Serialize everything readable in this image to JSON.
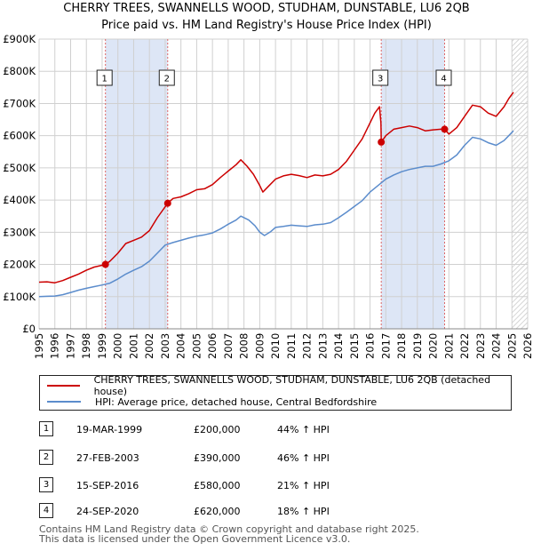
{
  "chart_data": {
    "type": "line",
    "title": "CHERRY TREES, SWANNELLS WOOD, STUDHAM, DUNSTABLE, LU6 2QB",
    "subtitle": "Price paid vs. HM Land Registry's House Price Index (HPI)",
    "xlabel": "",
    "ylabel": "",
    "xlim": [
      1995,
      2026
    ],
    "ylim": [
      0,
      900000
    ],
    "x_ticks": [
      "1995",
      "1996",
      "1997",
      "1998",
      "1999",
      "2000",
      "2001",
      "2002",
      "2003",
      "2004",
      "2005",
      "2006",
      "2007",
      "2008",
      "2009",
      "2010",
      "2011",
      "2012",
      "2013",
      "2014",
      "2015",
      "2016",
      "2017",
      "2018",
      "2019",
      "2020",
      "2021",
      "2022",
      "2023",
      "2024",
      "2025",
      "2026"
    ],
    "y_ticks": [
      {
        "value": 0,
        "label": "£0"
      },
      {
        "value": 100000,
        "label": "£100K"
      },
      {
        "value": 200000,
        "label": "£200K"
      },
      {
        "value": 300000,
        "label": "£300K"
      },
      {
        "value": 400000,
        "label": "£400K"
      },
      {
        "value": 500000,
        "label": "£500K"
      },
      {
        "value": 600000,
        "label": "£600K"
      },
      {
        "value": 700000,
        "label": "£700K"
      },
      {
        "value": 800000,
        "label": "£800K"
      },
      {
        "value": 900000,
        "label": "£900K"
      }
    ],
    "shaded_ranges": [
      [
        1999.21,
        2003.16
      ],
      [
        2016.71,
        2020.73
      ]
    ],
    "forecast_start": 2025.0,
    "series": [
      {
        "name": "CHERRY TREES, SWANNELLS WOOD, STUDHAM, DUNSTABLE, LU6 2QB (detached house)",
        "color": "#cc0000",
        "points": [
          [
            1995,
            145000
          ],
          [
            1995.5,
            146000
          ],
          [
            1996,
            143000
          ],
          [
            1996.5,
            150000
          ],
          [
            1997,
            160000
          ],
          [
            1997.5,
            170000
          ],
          [
            1998,
            182000
          ],
          [
            1998.5,
            192000
          ],
          [
            1999.21,
            200000
          ],
          [
            1999.5,
            210000
          ],
          [
            2000,
            235000
          ],
          [
            2000.5,
            265000
          ],
          [
            2001,
            275000
          ],
          [
            2001.5,
            285000
          ],
          [
            2002,
            305000
          ],
          [
            2002.5,
            345000
          ],
          [
            2003.16,
            390000
          ],
          [
            2003.5,
            405000
          ],
          [
            2004,
            410000
          ],
          [
            2004.5,
            420000
          ],
          [
            2005,
            432000
          ],
          [
            2005.5,
            435000
          ],
          [
            2006,
            448000
          ],
          [
            2006.5,
            470000
          ],
          [
            2007,
            490000
          ],
          [
            2007.5,
            510000
          ],
          [
            2007.8,
            525000
          ],
          [
            2008.2,
            505000
          ],
          [
            2008.6,
            480000
          ],
          [
            2009,
            445000
          ],
          [
            2009.2,
            425000
          ],
          [
            2009.6,
            445000
          ],
          [
            2010,
            465000
          ],
          [
            2010.5,
            475000
          ],
          [
            2011,
            480000
          ],
          [
            2011.5,
            476000
          ],
          [
            2012,
            470000
          ],
          [
            2012.5,
            478000
          ],
          [
            2013,
            475000
          ],
          [
            2013.5,
            480000
          ],
          [
            2014,
            495000
          ],
          [
            2014.5,
            520000
          ],
          [
            2015,
            555000
          ],
          [
            2015.5,
            590000
          ],
          [
            2016,
            640000
          ],
          [
            2016.3,
            670000
          ],
          [
            2016.6,
            690000
          ],
          [
            2016.69,
            640000
          ],
          [
            2016.71,
            580000
          ],
          [
            2017,
            600000
          ],
          [
            2017.5,
            620000
          ],
          [
            2018,
            625000
          ],
          [
            2018.5,
            630000
          ],
          [
            2019,
            625000
          ],
          [
            2019.5,
            615000
          ],
          [
            2020,
            618000
          ],
          [
            2020.5,
            620000
          ],
          [
            2020.73,
            620000
          ],
          [
            2021,
            605000
          ],
          [
            2021.5,
            625000
          ],
          [
            2022,
            660000
          ],
          [
            2022.5,
            695000
          ],
          [
            2023,
            690000
          ],
          [
            2023.5,
            670000
          ],
          [
            2024,
            660000
          ],
          [
            2024.5,
            690000
          ],
          [
            2024.8,
            715000
          ],
          [
            2025.1,
            735000
          ]
        ]
      },
      {
        "name": "HPI: Average price, detached house, Central Bedfordshire",
        "color": "#5b8ccc",
        "points": [
          [
            1995,
            100000
          ],
          [
            1995.5,
            101000
          ],
          [
            1996,
            102000
          ],
          [
            1996.5,
            106000
          ],
          [
            1997,
            113000
          ],
          [
            1997.5,
            120000
          ],
          [
            1998,
            126000
          ],
          [
            1998.5,
            131000
          ],
          [
            1999,
            136000
          ],
          [
            1999.5,
            142000
          ],
          [
            2000,
            155000
          ],
          [
            2000.5,
            170000
          ],
          [
            2001,
            182000
          ],
          [
            2001.5,
            193000
          ],
          [
            2002,
            210000
          ],
          [
            2002.5,
            235000
          ],
          [
            2003,
            260000
          ],
          [
            2003.5,
            268000
          ],
          [
            2004,
            275000
          ],
          [
            2004.5,
            282000
          ],
          [
            2005,
            288000
          ],
          [
            2005.5,
            292000
          ],
          [
            2006,
            298000
          ],
          [
            2006.5,
            310000
          ],
          [
            2007,
            325000
          ],
          [
            2007.5,
            338000
          ],
          [
            2007.8,
            350000
          ],
          [
            2008.3,
            338000
          ],
          [
            2008.7,
            320000
          ],
          [
            2009,
            300000
          ],
          [
            2009.3,
            290000
          ],
          [
            2009.7,
            302000
          ],
          [
            2010,
            315000
          ],
          [
            2010.5,
            318000
          ],
          [
            2011,
            322000
          ],
          [
            2011.5,
            320000
          ],
          [
            2012,
            318000
          ],
          [
            2012.5,
            323000
          ],
          [
            2013,
            325000
          ],
          [
            2013.5,
            330000
          ],
          [
            2014,
            345000
          ],
          [
            2014.5,
            362000
          ],
          [
            2015,
            380000
          ],
          [
            2015.5,
            398000
          ],
          [
            2016,
            425000
          ],
          [
            2016.5,
            445000
          ],
          [
            2017,
            465000
          ],
          [
            2017.5,
            478000
          ],
          [
            2018,
            488000
          ],
          [
            2018.5,
            495000
          ],
          [
            2019,
            500000
          ],
          [
            2019.5,
            505000
          ],
          [
            2020,
            505000
          ],
          [
            2020.5,
            512000
          ],
          [
            2021,
            522000
          ],
          [
            2021.5,
            540000
          ],
          [
            2022,
            570000
          ],
          [
            2022.5,
            595000
          ],
          [
            2023,
            590000
          ],
          [
            2023.5,
            578000
          ],
          [
            2024,
            570000
          ],
          [
            2024.5,
            585000
          ],
          [
            2024.8,
            600000
          ],
          [
            2025.1,
            615000
          ]
        ]
      }
    ],
    "sales": [
      {
        "id": "1",
        "date": "19-MAR-1999",
        "x": 1999.21,
        "price": 200000,
        "price_label": "£200,000",
        "hpi_change": "44% ↑ HPI"
      },
      {
        "id": "2",
        "date": "27-FEB-2003",
        "x": 2003.16,
        "price": 390000,
        "price_label": "£390,000",
        "hpi_change": "46% ↑ HPI"
      },
      {
        "id": "3",
        "date": "15-SEP-2016",
        "x": 2016.71,
        "price": 580000,
        "price_label": "£580,000",
        "hpi_change": "21% ↑ HPI"
      },
      {
        "id": "4",
        "date": "24-SEP-2020",
        "x": 2020.73,
        "price": 620000,
        "price_label": "£620,000",
        "hpi_change": "18% ↑ HPI"
      }
    ]
  },
  "legend": {
    "series1_label": "CHERRY TREES, SWANNELLS WOOD, STUDHAM, DUNSTABLE, LU6 2QB (detached house)",
    "series2_label": "HPI: Average price, detached house, Central Bedfordshire"
  },
  "colors": {
    "price_line": "#cc0000",
    "hpi_line": "#5b8ccc",
    "shade": "#dde6f6",
    "grid": "#d0d0d0"
  },
  "footer": {
    "line1": "Contains HM Land Registry data © Crown copyright and database right 2025.",
    "line2": "This data is licensed under the Open Government Licence v3.0."
  }
}
